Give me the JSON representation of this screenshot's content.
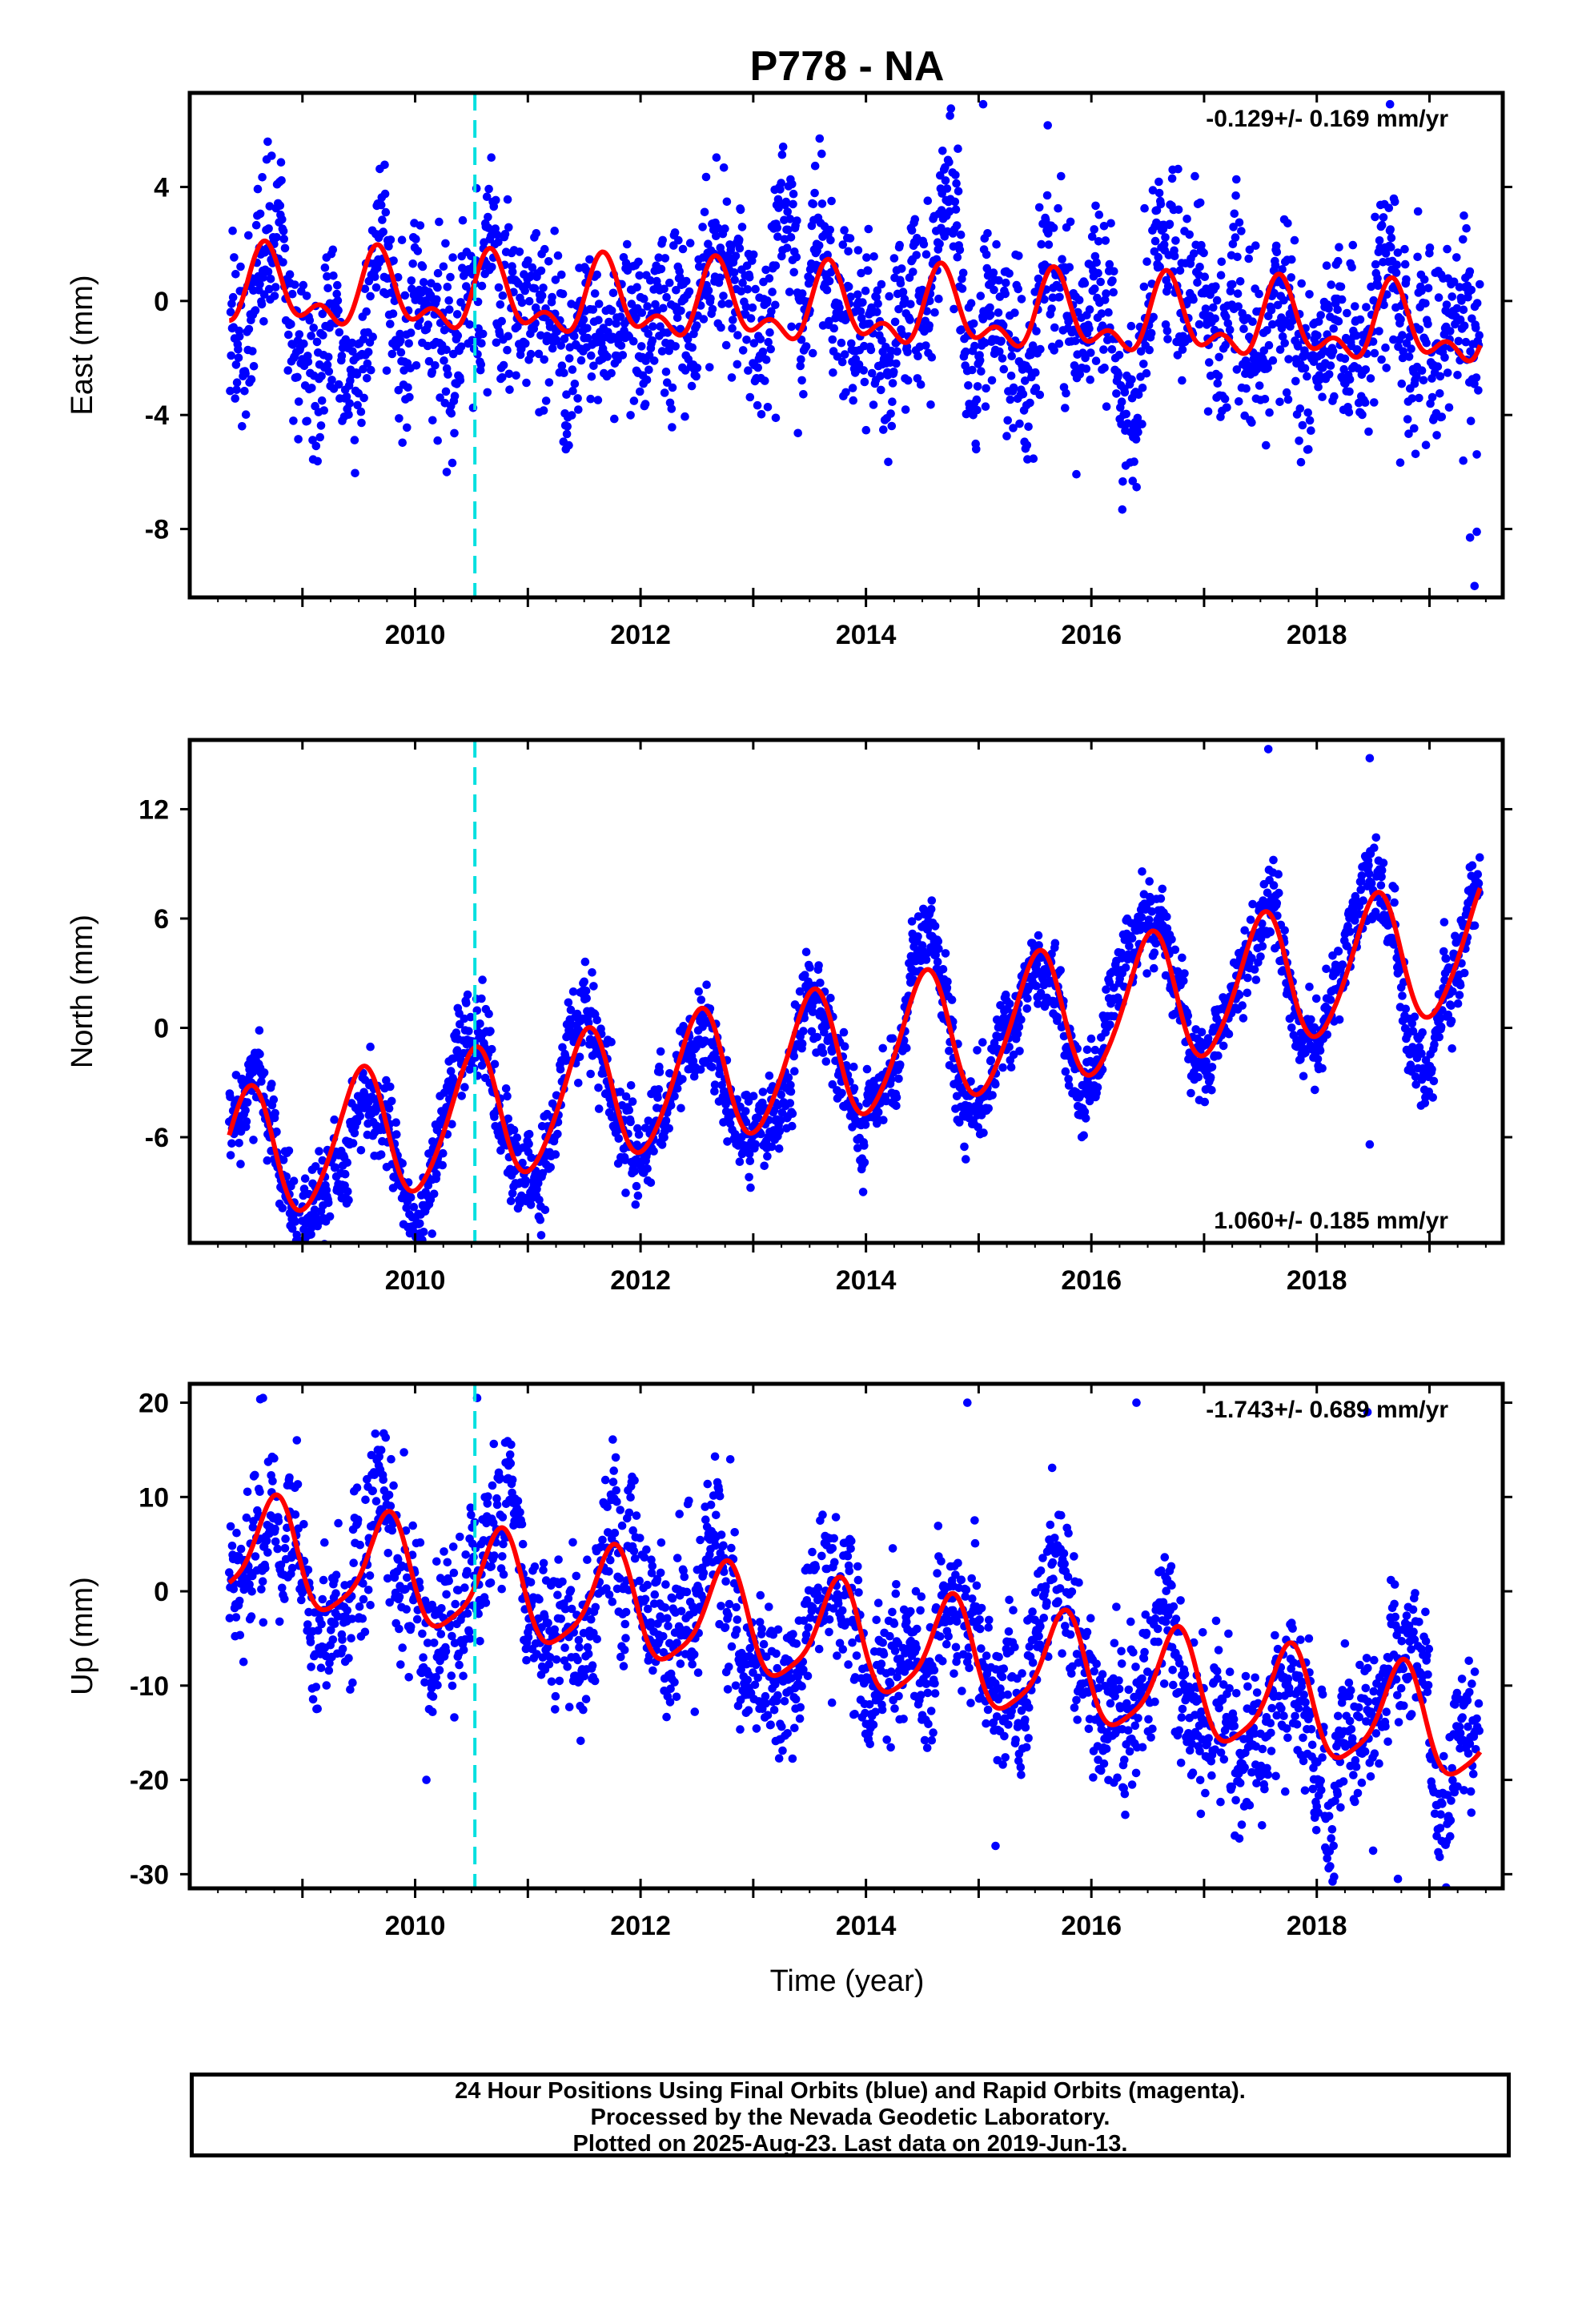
{
  "title": "P778 - NA",
  "xlabel": "Time (year)",
  "footer": {
    "line1": "24 Hour Positions Using Final Orbits (blue) and Rapid Orbits (magenta).",
    "line2": "Processed by the Nevada Geodetic Laboratory.",
    "line3": "Plotted on 2025-Aug-23. Last data on 2019-Jun-13."
  },
  "colors": {
    "data": "#0000ff",
    "model": "#ff0000",
    "event_line": "#00e0e0",
    "frame": "#000000"
  },
  "chart_data": [
    {
      "type": "scatter",
      "component": "east",
      "ylabel": "East (mm)",
      "rate": "-0.129+/- 0.169 mm/yr",
      "rate_position": "top-right",
      "xlim": [
        2008.0,
        2019.65
      ],
      "ylim": [
        -10.4,
        7.3
      ],
      "yticks": [
        4,
        0,
        -4,
        -8
      ],
      "xticks": [
        2010,
        2012,
        2014,
        2016,
        2018
      ],
      "event_line_x": 2010.53,
      "data_start": 2008.35,
      "data_end": 2019.45,
      "model": {
        "offset": 0.4,
        "trend": -0.129,
        "annual_amp": 1.1,
        "annual_peak": 2008.68,
        "semi_amp": 0.7,
        "semi_peak": 2008.66,
        "noise_sd": 1.35
      },
      "outliers": [
        [
          2015.04,
          6.9
        ],
        [
          2010.2,
          -4.9
        ],
        [
          2010.28,
          -6.0
        ],
        [
          2019.3,
          -5.6
        ],
        [
          2019.36,
          -8.3
        ],
        [
          2019.42,
          -8.1
        ],
        [
          2019.4,
          -10.0
        ],
        [
          2018.65,
          6.9
        ],
        [
          2013.2,
          -4.1
        ]
      ]
    },
    {
      "type": "scatter",
      "component": "north",
      "ylabel": "North (mm)",
      "rate": "1.060+/- 0.185 mm/yr",
      "rate_position": "bottom-right",
      "xlim": [
        2008.0,
        2019.65
      ],
      "ylim": [
        -11.8,
        15.8
      ],
      "yticks": [
        12,
        6,
        0,
        -6
      ],
      "xticks": [
        2010,
        2012,
        2014,
        2016,
        2018
      ],
      "event_line_x": 2010.53,
      "data_start": 2008.35,
      "data_end": 2019.45,
      "model": {
        "offset": -7.6,
        "trend": 1.06,
        "annual_amp": 3.6,
        "annual_peak": 2008.52,
        "semi_amp": 0.4,
        "semi_peak": 2008.6,
        "noise_sd": 1.05
      },
      "outliers": [
        [
          2017.57,
          15.3
        ],
        [
          2018.47,
          14.8
        ],
        [
          2010.15,
          -11.3
        ],
        [
          2009.0,
          -9.8
        ],
        [
          2018.47,
          -6.4
        ],
        [
          2010.85,
          -9.5
        ]
      ]
    },
    {
      "type": "scatter",
      "component": "up",
      "ylabel": "Up (mm)",
      "rate": "-1.743+/- 0.689 mm/yr",
      "rate_position": "top-right",
      "xlim": [
        2008.0,
        2019.65
      ],
      "ylim": [
        -31.5,
        22.0
      ],
      "yticks": [
        20,
        10,
        0,
        -10,
        -20,
        -30
      ],
      "xticks": [
        2010,
        2012,
        2014,
        2016,
        2018
      ],
      "event_line_x": 2010.53,
      "data_start": 2008.35,
      "data_end": 2019.45,
      "model": {
        "offset": 5.0,
        "trend": -1.743,
        "annual_amp": 5.5,
        "annual_peak": 2008.75,
        "semi_amp": 1.2,
        "semi_peak": 2008.8,
        "noise_sd": 3.6
      },
      "outliers": [
        [
          2008.65,
          20.5
        ],
        [
          2010.55,
          20.5
        ],
        [
          2010.1,
          -20.0
        ],
        [
          2015.15,
          -27.0
        ],
        [
          2018.72,
          -30.5
        ],
        [
          2018.5,
          -27.5
        ],
        [
          2018.45,
          19.0
        ],
        [
          2016.4,
          20.0
        ],
        [
          2014.9,
          20.0
        ]
      ]
    }
  ]
}
